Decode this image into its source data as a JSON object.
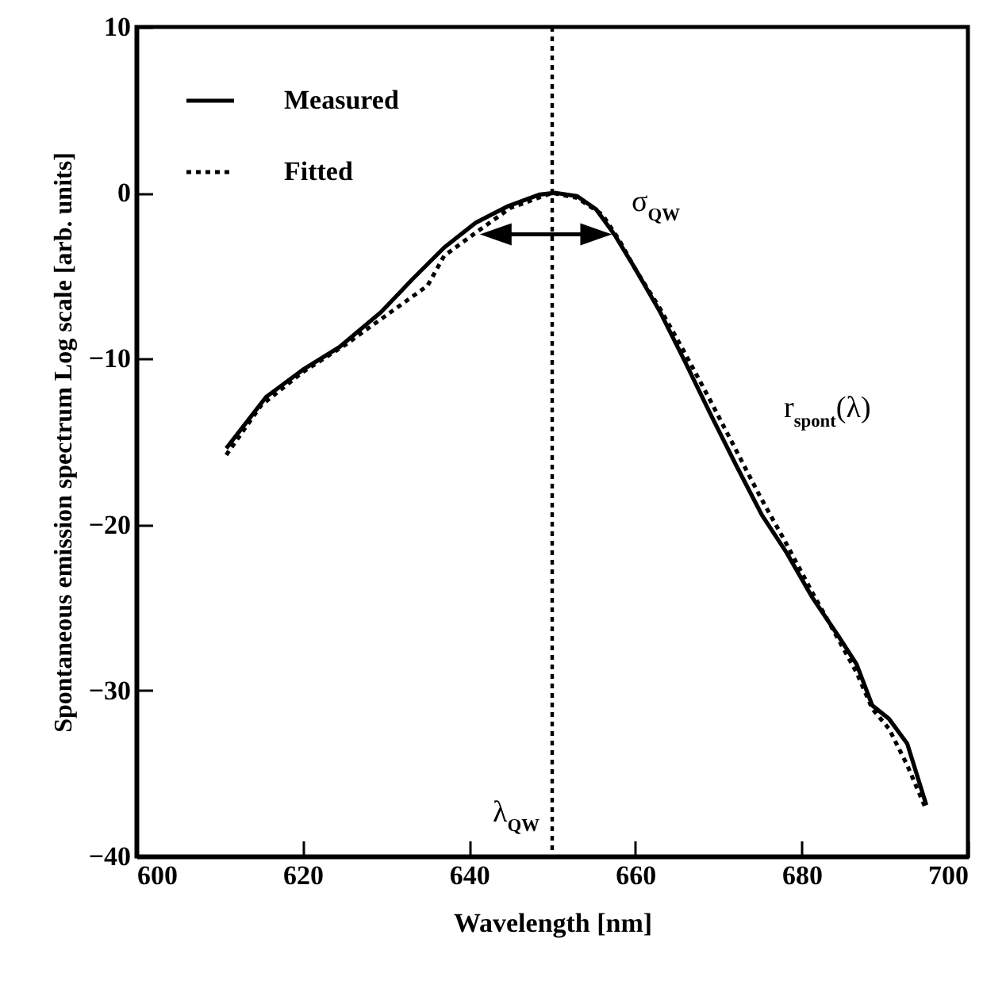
{
  "chart_data": {
    "type": "line",
    "xlabel": "Wavelength [nm]",
    "ylabel": "Spontaneous emission spectrum   Log scale [arb. units]",
    "xlim": [
      600,
      700
    ],
    "xticks": [
      600,
      620,
      640,
      660,
      680,
      700
    ],
    "ylim": [
      -40,
      10
    ],
    "yticks": [
      -40,
      -30,
      -20,
      -10,
      0,
      10
    ],
    "grid": false,
    "legend": "top left",
    "series": [
      {
        "name": "Measured",
        "color": "#000000",
        "line_style": "solid",
        "x": [
          610.8,
          615.6,
          620.2,
          624.4,
          629.4,
          633.2,
          637,
          640.8,
          644.7,
          648.5,
          650.4,
          653,
          655.3,
          657.6,
          659.9,
          663,
          666,
          669,
          672.1,
          675.2,
          678.2,
          681.3,
          684.4,
          686.6,
          688.5,
          690.5,
          692.7,
          695
        ],
        "values": [
          -15.4,
          -12.3,
          -10.6,
          -9.3,
          -7.2,
          -5.2,
          -3.3,
          -1.8,
          -0.8,
          -0.1,
          0,
          -0.2,
          -1,
          -2.6,
          -4.5,
          -7.2,
          -10.2,
          -13.3,
          -16.4,
          -19.4,
          -21.7,
          -24.4,
          -26.7,
          -28.4,
          -30.9,
          -31.7,
          -33.2,
          -36.9
        ]
      },
      {
        "name": "Fitted",
        "color": "#000000",
        "line_style": "dotted",
        "x": [
          610.8,
          615,
          620,
          625,
          630,
          635,
          637,
          640.8,
          645,
          650,
          653,
          656,
          658,
          660,
          663,
          666,
          669,
          672,
          675,
          678,
          681.3,
          684.4,
          686.6,
          688.5,
          690.5,
          692.7,
          695
        ],
        "values": [
          -15.8,
          -12.8,
          -10.8,
          -9.2,
          -7.4,
          -5.6,
          -3.8,
          -2.4,
          -0.9,
          0,
          -0.3,
          -1.3,
          -2.8,
          -4.6,
          -7,
          -9.7,
          -12.5,
          -15.4,
          -18.3,
          -21,
          -24.1,
          -26.9,
          -28.9,
          -31.1,
          -32.3,
          -34.5,
          -37.2
        ]
      }
    ],
    "ref_lines": [
      {
        "axis": "x",
        "value": 650,
        "label": "λ$_{QW}$",
        "line_style": "dotted"
      }
    ],
    "annotations": [
      "σ$_{QW}$",
      "r$_{spont}$(λ)"
    ]
  }
}
